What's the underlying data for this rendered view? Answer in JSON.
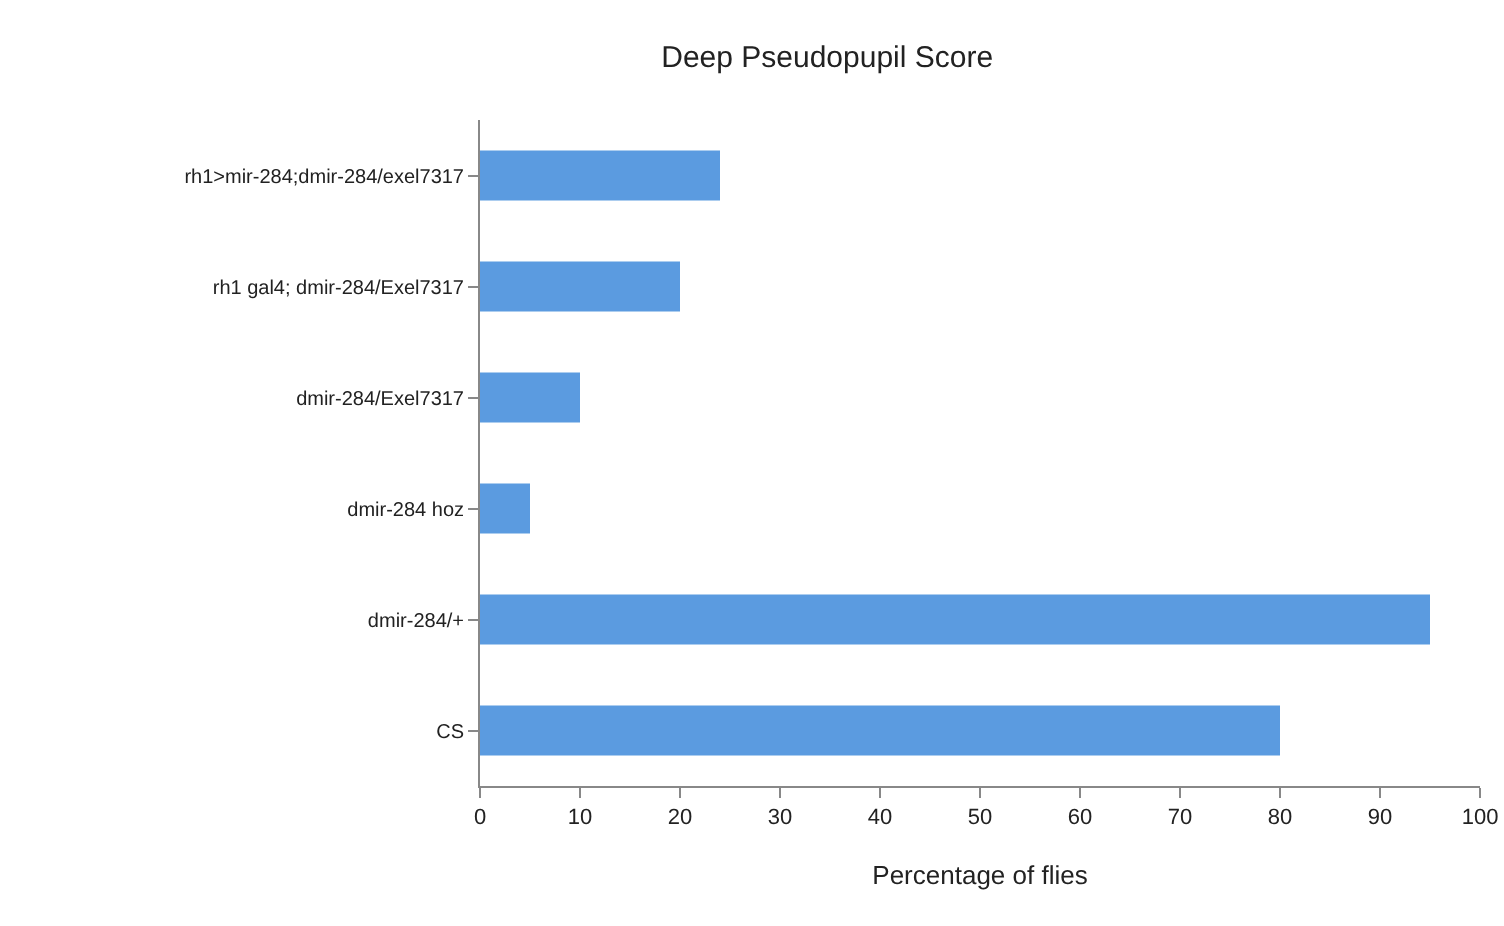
{
  "chart_data": {
    "type": "bar",
    "orientation": "horizontal",
    "title": "Deep Pseudopupil Score",
    "xlabel": "Percentage of flies",
    "categories": [
      "rh1>mir-284;dmir-284/exel7317",
      "rh1 gal4; dmir-284/Exel7317",
      "dmir-284/Exel7317",
      "dmir-284 hoz",
      "dmir-284/+",
      "CS"
    ],
    "values": [
      24,
      20,
      10,
      5,
      95,
      80
    ],
    "color": "#5b9be0",
    "xlim": [
      0,
      100
    ],
    "xticks": [
      0,
      10,
      20,
      30,
      40,
      50,
      60,
      70,
      80,
      90,
      100
    ],
    "grid": false,
    "legend": false
  }
}
